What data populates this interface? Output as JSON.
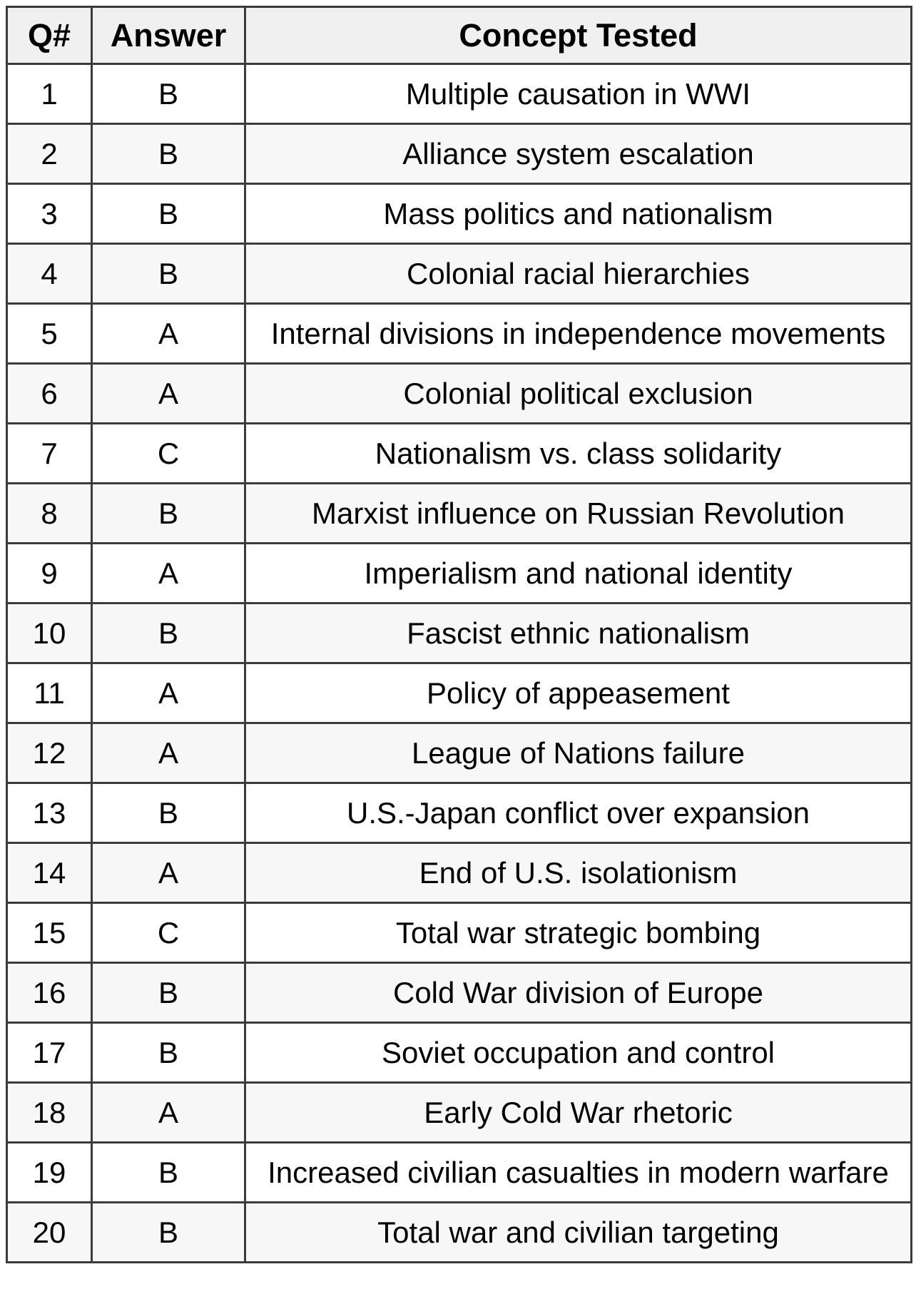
{
  "colors": {
    "border": "#3b3b3b",
    "header_bg": "#f0f0f0",
    "row_alt_bg": "#f7f7f7",
    "row_bg": "#ffffff",
    "text": "#000000"
  },
  "table": {
    "columns": [
      {
        "key": "q",
        "label": "Q#"
      },
      {
        "key": "answer",
        "label": "Answer"
      },
      {
        "key": "concept",
        "label": "Concept Tested"
      }
    ],
    "rows": [
      {
        "q": "1",
        "answer": "B",
        "concept": "Multiple causation in WWI"
      },
      {
        "q": "2",
        "answer": "B",
        "concept": "Alliance system escalation"
      },
      {
        "q": "3",
        "answer": "B",
        "concept": "Mass politics and nationalism"
      },
      {
        "q": "4",
        "answer": "B",
        "concept": "Colonial racial hierarchies"
      },
      {
        "q": "5",
        "answer": "A",
        "concept": "Internal divisions in independence movements"
      },
      {
        "q": "6",
        "answer": "A",
        "concept": "Colonial political exclusion"
      },
      {
        "q": "7",
        "answer": "C",
        "concept": "Nationalism vs. class solidarity"
      },
      {
        "q": "8",
        "answer": "B",
        "concept": "Marxist influence on Russian Revolution"
      },
      {
        "q": "9",
        "answer": "A",
        "concept": "Imperialism and national identity"
      },
      {
        "q": "10",
        "answer": "B",
        "concept": "Fascist ethnic nationalism"
      },
      {
        "q": "11",
        "answer": "A",
        "concept": "Policy of appeasement"
      },
      {
        "q": "12",
        "answer": "A",
        "concept": "League of Nations failure"
      },
      {
        "q": "13",
        "answer": "B",
        "concept": "U.S.-Japan conflict over expansion"
      },
      {
        "q": "14",
        "answer": "A",
        "concept": "End of U.S. isolationism"
      },
      {
        "q": "15",
        "answer": "C",
        "concept": "Total war strategic bombing"
      },
      {
        "q": "16",
        "answer": "B",
        "concept": "Cold War division of Europe"
      },
      {
        "q": "17",
        "answer": "B",
        "concept": "Soviet occupation and control"
      },
      {
        "q": "18",
        "answer": "A",
        "concept": "Early Cold War rhetoric"
      },
      {
        "q": "19",
        "answer": "B",
        "concept": "Increased civilian casualties in modern warfare"
      },
      {
        "q": "20",
        "answer": "B",
        "concept": "Total war and civilian targeting"
      }
    ]
  }
}
